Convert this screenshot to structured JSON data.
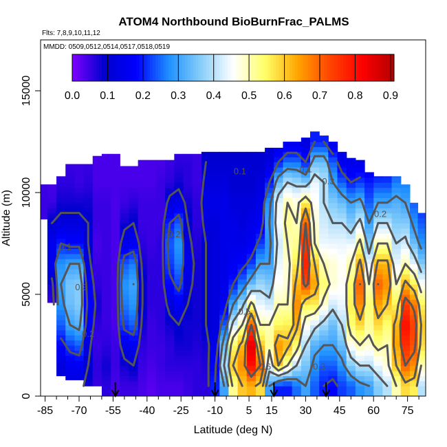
{
  "chart_data": {
    "type": "heatmap",
    "title": "ATOM4 Northbound BioBurnFrac_PALMS",
    "subtitle_flights": "Flts: 7,8,9,10,11,12",
    "subtitle_dates": "MMDD: 0509,0512,0514,0517,0518,0519",
    "xlabel": "Latitude (deg N)",
    "ylabel": "Altitude (m)",
    "xlim": [
      -87,
      83
    ],
    "ylim": [
      0,
      17500
    ],
    "x_ticks": [
      -85,
      -70,
      -55,
      -40,
      -25,
      -10,
      5,
      15,
      30,
      45,
      60,
      75
    ],
    "x_minor_ticks": [
      -80,
      -75,
      -65,
      -60,
      -50,
      -45,
      -35,
      -30,
      -20,
      -15,
      -5,
      0,
      10,
      20,
      25,
      35,
      40,
      50,
      55,
      65,
      70,
      80
    ],
    "y_ticks": [
      0,
      5000,
      10000,
      15000
    ],
    "colorbar": {
      "min": 0.0,
      "max": 0.91,
      "ticks": [
        "0.0",
        "0.1",
        "0.2",
        "0.3",
        "0.4",
        "0.5",
        "0.6",
        "0.7",
        "0.8",
        "0.9"
      ],
      "colors": [
        "#7f00ff",
        "#0000cd",
        "#0000ff",
        "#1e90ff",
        "#87cefa",
        "#ffffff",
        "#ffff66",
        "#ffa500",
        "#ff4500",
        "#ff0000",
        "#b30000"
      ]
    },
    "arrow_latitudes": [
      -54,
      -10,
      16,
      39
    ],
    "contour_labels": [
      {
        "text": "0.1",
        "lat": -76,
        "alt": 7200
      },
      {
        "text": "0.3",
        "lat": -69,
        "alt": 5200
      },
      {
        "text": "0.2",
        "lat": -66,
        "alt": 2900
      },
      {
        "text": "0.2",
        "lat": -28,
        "alt": 7800
      },
      {
        "text": "0.1",
        "lat": 1,
        "alt": 10900
      },
      {
        "text": "0.5",
        "lat": 3,
        "alt": 4000
      },
      {
        "text": "0.6",
        "lat": 12,
        "alt": 1300
      },
      {
        "text": "0.3",
        "lat": 36,
        "alt": 1300
      },
      {
        "text": "0.1",
        "lat": 30,
        "alt": 11000
      },
      {
        "text": "0.3",
        "lat": 40,
        "alt": 10400
      },
      {
        "text": "0.2",
        "lat": 63,
        "alt": 8800
      }
    ],
    "bbf_columns": [
      {
        "lat": -86,
        "bot": 8700,
        "top": 10400,
        "v": [
          0.05,
          0.05,
          0.05,
          0.05,
          0.05,
          0.05,
          0.05,
          0.05,
          0.05,
          0.05,
          0.05,
          0.05,
          0.05
        ]
      },
      {
        "lat": -82,
        "bot": 4600,
        "top": 10400,
        "v": [
          0.05,
          0.05,
          0.05,
          0.05,
          0.05,
          0.08,
          0.15,
          0.15,
          0.1,
          0.05,
          0.04,
          0.04,
          0.05
        ]
      },
      {
        "lat": -78,
        "bot": 1000,
        "top": 10800,
        "v": [
          0.1,
          0.12,
          0.18,
          0.24,
          0.28,
          0.3,
          0.28,
          0.2,
          0.12,
          0.08,
          0.06,
          0.05,
          0.05
        ]
      },
      {
        "lat": -74,
        "bot": 800,
        "top": 11400,
        "v": [
          0.12,
          0.16,
          0.22,
          0.3,
          0.34,
          0.35,
          0.3,
          0.18,
          0.12,
          0.08,
          0.06,
          0.05,
          0.05
        ]
      },
      {
        "lat": -70,
        "bot": 800,
        "top": 11400,
        "v": [
          0.12,
          0.16,
          0.24,
          0.32,
          0.36,
          0.36,
          0.3,
          0.18,
          0.12,
          0.08,
          0.05,
          0.05,
          0.05
        ]
      },
      {
        "lat": -66,
        "bot": 500,
        "top": 11400,
        "v": [
          0.08,
          0.1,
          0.12,
          0.16,
          0.18,
          0.16,
          0.12,
          0.1,
          0.1,
          0.08,
          0.06,
          0.05,
          0.05
        ]
      },
      {
        "lat": -62,
        "bot": 500,
        "top": 11800,
        "v": [
          0.05,
          0.06,
          0.05,
          0.06,
          0.08,
          0.06,
          0.05,
          0.04,
          0.05,
          0.05,
          0.04,
          0.04,
          0.04
        ]
      },
      {
        "lat": -58,
        "bot": 0,
        "top": 11900,
        "v": [
          0.06,
          0.08,
          0.06,
          0.05,
          0.05,
          0.05,
          0.05,
          0.05,
          0.05,
          0.05,
          0.04,
          0.04,
          0.04
        ]
      },
      {
        "lat": -54,
        "bot": 0,
        "top": 11900,
        "v": [
          0.04,
          0.05,
          0.05,
          0.04,
          0.04,
          0.04,
          0.04,
          0.04,
          0.04,
          0.04,
          0.04,
          0.04,
          0.04
        ]
      },
      {
        "lat": -50,
        "bot": 0,
        "top": 11300,
        "v": [
          0.05,
          0.08,
          0.14,
          0.22,
          0.26,
          0.28,
          0.24,
          0.14,
          0.08,
          0.05,
          0.04,
          0.04,
          0.04
        ]
      },
      {
        "lat": -46,
        "bot": 0,
        "top": 11300,
        "v": [
          0.05,
          0.1,
          0.16,
          0.24,
          0.28,
          0.3,
          0.26,
          0.16,
          0.1,
          0.06,
          0.04,
          0.04,
          0.04
        ]
      },
      {
        "lat": -42,
        "bot": 0,
        "top": 11600,
        "v": [
          0.04,
          0.05,
          0.06,
          0.08,
          0.1,
          0.1,
          0.08,
          0.06,
          0.05,
          0.05,
          0.04,
          0.04,
          0.04
        ]
      },
      {
        "lat": -38,
        "bot": 0,
        "top": 11600,
        "v": [
          0.03,
          0.04,
          0.05,
          0.05,
          0.06,
          0.06,
          0.06,
          0.05,
          0.05,
          0.05,
          0.04,
          0.04,
          0.04
        ]
      },
      {
        "lat": -34,
        "bot": 0,
        "top": 11600,
        "v": [
          0.04,
          0.05,
          0.05,
          0.06,
          0.06,
          0.06,
          0.06,
          0.06,
          0.05,
          0.05,
          0.05,
          0.04,
          0.04
        ]
      },
      {
        "lat": -30,
        "bot": 0,
        "top": 11600,
        "v": [
          0.04,
          0.06,
          0.06,
          0.08,
          0.12,
          0.18,
          0.22,
          0.24,
          0.2,
          0.12,
          0.06,
          0.05,
          0.05
        ]
      },
      {
        "lat": -26,
        "bot": 0,
        "top": 11900,
        "v": [
          0.04,
          0.06,
          0.08,
          0.1,
          0.16,
          0.22,
          0.26,
          0.28,
          0.24,
          0.14,
          0.08,
          0.06,
          0.05
        ]
      },
      {
        "lat": -22,
        "bot": 0,
        "top": 11900,
        "v": [
          0.05,
          0.06,
          0.08,
          0.08,
          0.1,
          0.12,
          0.14,
          0.12,
          0.1,
          0.08,
          0.06,
          0.06,
          0.05
        ]
      },
      {
        "lat": -18,
        "bot": 0,
        "top": 11900,
        "v": [
          0.06,
          0.06,
          0.07,
          0.08,
          0.08,
          0.08,
          0.08,
          0.07,
          0.06,
          0.06,
          0.05,
          0.05,
          0.05
        ]
      },
      {
        "lat": -14,
        "bot": 0,
        "top": 12000,
        "v": [
          0.06,
          0.07,
          0.08,
          0.1,
          0.1,
          0.1,
          0.1,
          0.1,
          0.12,
          0.14,
          0.12,
          0.1,
          0.08
        ]
      },
      {
        "lat": -10,
        "bot": 0,
        "top": 12000,
        "v": [
          0.2,
          0.18,
          0.14,
          0.12,
          0.12,
          0.12,
          0.12,
          0.12,
          0.12,
          0.14,
          0.12,
          0.1,
          0.08
        ]
      },
      {
        "lat": -6,
        "bot": 0,
        "top": 12000,
        "v": [
          0.3,
          0.4,
          0.34,
          0.24,
          0.16,
          0.14,
          0.14,
          0.14,
          0.14,
          0.14,
          0.12,
          0.1,
          0.08
        ]
      },
      {
        "lat": -2,
        "bot": 0,
        "top": 12000,
        "v": [
          0.52,
          0.6,
          0.55,
          0.42,
          0.3,
          0.2,
          0.16,
          0.14,
          0.14,
          0.12,
          0.1,
          0.1,
          0.08
        ]
      },
      {
        "lat": 2,
        "bot": 0,
        "top": 12000,
        "v": [
          0.6,
          0.66,
          0.62,
          0.5,
          0.38,
          0.26,
          0.18,
          0.14,
          0.12,
          0.12,
          0.1,
          0.1,
          0.08
        ]
      },
      {
        "lat": 6,
        "bot": 0,
        "top": 12000,
        "v": [
          0.62,
          0.8,
          0.85,
          0.7,
          0.52,
          0.34,
          0.22,
          0.16,
          0.14,
          0.12,
          0.1,
          0.1,
          0.08
        ]
      },
      {
        "lat": 10,
        "bot": 0,
        "top": 12000,
        "v": [
          0.58,
          0.7,
          0.6,
          0.5,
          0.44,
          0.38,
          0.3,
          0.22,
          0.16,
          0.14,
          0.12,
          0.1,
          0.1
        ]
      },
      {
        "lat": 14,
        "bot": 0,
        "top": 12200,
        "v": [
          0.3,
          0.44,
          0.52,
          0.5,
          0.42,
          0.36,
          0.3,
          0.28,
          0.3,
          0.28,
          0.2,
          0.12,
          0.1
        ]
      },
      {
        "lat": 18,
        "bot": 0,
        "top": 12200,
        "v": [
          0.2,
          0.6,
          0.65,
          0.55,
          0.5,
          0.46,
          0.44,
          0.42,
          0.45,
          0.44,
          0.34,
          0.2,
          0.12
        ]
      },
      {
        "lat": 22,
        "bot": 0,
        "top": 12500,
        "v": [
          0.2,
          0.5,
          0.62,
          0.56,
          0.5,
          0.48,
          0.48,
          0.5,
          0.52,
          0.5,
          0.4,
          0.25,
          0.14
        ]
      },
      {
        "lat": 26,
        "bot": 0,
        "top": 12500,
        "v": [
          0.25,
          0.4,
          0.54,
          0.62,
          0.66,
          0.62,
          0.56,
          0.52,
          0.5,
          0.48,
          0.38,
          0.25,
          0.14
        ]
      },
      {
        "lat": 30,
        "bot": 0,
        "top": 12700,
        "v": [
          0.3,
          0.35,
          0.4,
          0.46,
          0.56,
          0.72,
          0.78,
          0.74,
          0.7,
          0.56,
          0.36,
          0.2,
          0.12
        ]
      },
      {
        "lat": 34,
        "bot": 0,
        "top": 13000,
        "v": [
          0.24,
          0.28,
          0.32,
          0.42,
          0.56,
          0.64,
          0.6,
          0.5,
          0.48,
          0.46,
          0.44,
          0.34,
          0.2
        ]
      },
      {
        "lat": 38,
        "bot": 0,
        "top": 12800,
        "v": [
          0.2,
          0.24,
          0.3,
          0.38,
          0.48,
          0.54,
          0.5,
          0.44,
          0.42,
          0.4,
          0.4,
          0.34,
          0.2
        ]
      },
      {
        "lat": 42,
        "bot": 0,
        "top": 12500,
        "v": [
          0.18,
          0.24,
          0.3,
          0.34,
          0.42,
          0.48,
          0.48,
          0.44,
          0.4,
          0.36,
          0.3,
          0.24,
          0.14
        ]
      },
      {
        "lat": 46,
        "bot": 0,
        "top": 12000,
        "v": [
          0.22,
          0.28,
          0.34,
          0.4,
          0.44,
          0.46,
          0.46,
          0.44,
          0.4,
          0.34,
          0.24,
          0.16,
          0.1
        ]
      },
      {
        "lat": 50,
        "bot": 0,
        "top": 11700,
        "v": [
          0.24,
          0.36,
          0.46,
          0.54,
          0.56,
          0.54,
          0.5,
          0.44,
          0.36,
          0.3,
          0.2,
          0.14,
          0.1
        ]
      },
      {
        "lat": 54,
        "bot": 0,
        "top": 11600,
        "v": [
          0.28,
          0.4,
          0.5,
          0.58,
          0.66,
          0.7,
          0.62,
          0.52,
          0.42,
          0.32,
          0.22,
          0.14,
          0.1
        ]
      },
      {
        "lat": 58,
        "bot": 0,
        "top": 11000,
        "v": [
          0.3,
          0.4,
          0.48,
          0.52,
          0.54,
          0.5,
          0.44,
          0.36,
          0.3,
          0.24,
          0.2,
          0.14,
          0.1
        ]
      },
      {
        "lat": 62,
        "bot": 0,
        "top": 10800,
        "v": [
          0.36,
          0.44,
          0.52,
          0.58,
          0.64,
          0.7,
          0.62,
          0.5,
          0.4,
          0.3,
          0.22,
          0.14,
          0.1
        ]
      },
      {
        "lat": 66,
        "bot": 0,
        "top": 10800,
        "v": [
          0.4,
          0.48,
          0.5,
          0.54,
          0.6,
          0.66,
          0.62,
          0.5,
          0.4,
          0.3,
          0.22,
          0.16,
          0.1
        ]
      },
      {
        "lat": 70,
        "bot": 0,
        "top": 10800,
        "v": [
          0.5,
          0.6,
          0.64,
          0.62,
          0.56,
          0.5,
          0.44,
          0.4,
          0.36,
          0.32,
          0.26,
          0.2,
          0.14
        ]
      },
      {
        "lat": 74,
        "bot": 0,
        "top": 10400,
        "v": [
          0.58,
          0.7,
          0.76,
          0.8,
          0.74,
          0.62,
          0.5,
          0.42,
          0.36,
          0.3,
          0.26,
          0.2,
          0.14
        ]
      },
      {
        "lat": 78,
        "bot": 0,
        "top": 9500,
        "v": [
          0.56,
          0.66,
          0.72,
          0.74,
          0.68,
          0.56,
          0.44,
          0.34,
          0.28,
          0.24,
          0.2,
          0.16,
          0.14
        ]
      },
      {
        "lat": 81,
        "bot": 0,
        "top": 9000,
        "v": [
          0.4,
          0.5,
          0.58,
          0.6,
          0.56,
          0.46,
          0.36,
          0.28,
          0.24,
          0.2,
          0.16,
          0.14,
          0.12
        ]
      }
    ]
  }
}
